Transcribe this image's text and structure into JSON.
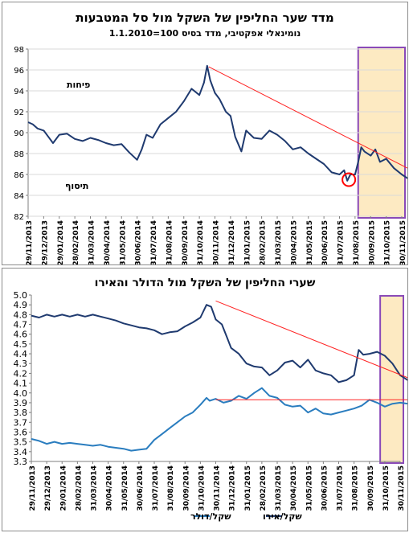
{
  "chart_data": [
    {
      "type": "line",
      "title": "מדד שער החליפין של השקל מול סל המטבעות",
      "subtitle": "נומינאלי אפקטיבי, מדד בסיס 100=1.1.2010",
      "ylim": [
        82,
        98
      ],
      "yticks": [
        82,
        84,
        86,
        88,
        90,
        92,
        94,
        96,
        98
      ],
      "x_ticks": [
        "29/11/2013",
        "29/12/2013",
        "29/01/2014",
        "28/02/2014",
        "31/03/2014",
        "30/04/2014",
        "31/05/2014",
        "30/06/2014",
        "31/07/2014",
        "31/08/2014",
        "30/09/2014",
        "31/10/2014",
        "30/11/2014",
        "31/12/2014",
        "31/01/2015",
        "28/02/2015",
        "31/03/2015",
        "30/04/2015",
        "31/05/2015",
        "30/06/2015",
        "31/07/2015",
        "31/08/2015",
        "30/09/2015",
        "31/10/2015",
        "30/11/2015"
      ],
      "annotations": {
        "upper": "פיחות",
        "lower": "תיסוף"
      },
      "series": [
        {
          "values": [
            [
              0,
              91.0
            ],
            [
              0.3,
              90.8
            ],
            [
              0.6,
              90.4
            ],
            [
              1,
              90.2
            ],
            [
              1.3,
              89.6
            ],
            [
              1.6,
              89.0
            ],
            [
              2,
              89.8
            ],
            [
              2.5,
              89.9
            ],
            [
              3,
              89.4
            ],
            [
              3.5,
              89.2
            ],
            [
              4,
              89.5
            ],
            [
              4.5,
              89.3
            ],
            [
              5,
              89.0
            ],
            [
              5.5,
              88.8
            ],
            [
              6,
              88.9
            ],
            [
              6.5,
              88.1
            ],
            [
              7,
              87.4
            ],
            [
              7.3,
              88.4
            ],
            [
              7.6,
              89.8
            ],
            [
              8,
              89.5
            ],
            [
              8.5,
              90.8
            ],
            [
              9,
              91.4
            ],
            [
              9.5,
              92.0
            ],
            [
              10,
              93.0
            ],
            [
              10.5,
              94.2
            ],
            [
              11,
              93.6
            ],
            [
              11.3,
              94.8
            ],
            [
              11.5,
              96.4
            ],
            [
              11.7,
              95.0
            ],
            [
              12,
              93.8
            ],
            [
              12.3,
              93.2
            ],
            [
              12.7,
              92.0
            ],
            [
              13,
              91.6
            ],
            [
              13.3,
              89.6
            ],
            [
              13.7,
              88.2
            ],
            [
              14,
              90.2
            ],
            [
              14.5,
              89.5
            ],
            [
              15,
              89.4
            ],
            [
              15.5,
              90.2
            ],
            [
              16,
              89.8
            ],
            [
              16.5,
              89.2
            ],
            [
              17,
              88.4
            ],
            [
              17.5,
              88.6
            ],
            [
              18,
              88.0
            ],
            [
              18.5,
              87.5
            ],
            [
              19,
              87.0
            ],
            [
              19.5,
              86.2
            ],
            [
              20,
              86.0
            ],
            [
              20.3,
              86.4
            ],
            [
              20.5,
              85.4
            ],
            [
              20.7,
              86.0
            ],
            [
              21,
              86.0
            ],
            [
              21.2,
              87.2
            ],
            [
              21.4,
              88.6
            ],
            [
              21.6,
              88.2
            ],
            [
              22,
              87.8
            ],
            [
              22.3,
              88.4
            ],
            [
              22.6,
              87.2
            ],
            [
              23,
              87.5
            ],
            [
              23.5,
              86.6
            ],
            [
              24,
              86.0
            ],
            [
              24.5,
              85.5
            ],
            [
              25,
              85.0
            ]
          ]
        }
      ]
    },
    {
      "type": "line",
      "title": "שערי החליפין של השקל מול הדולר והאירו",
      "ylim": [
        3.3,
        5.0
      ],
      "yticks": [
        3.3,
        3.4,
        3.5,
        3.6,
        3.7,
        3.8,
        3.9,
        4.0,
        4.1,
        4.2,
        4.3,
        4.4,
        4.5,
        4.6,
        4.7,
        4.8,
        4.9,
        5.0
      ],
      "x_ticks": [
        "29/11/2013",
        "29/12/2013",
        "29/01/2014",
        "28/02/2014",
        "31/03/2014",
        "30/04/2014",
        "31/05/2014",
        "30/06/2014",
        "31/07/2014",
        "31/08/2014",
        "30/09/2014",
        "31/10/2014",
        "30/11/2014",
        "31/12/2014",
        "31/01/2015",
        "28/02/2015",
        "31/03/2015",
        "30/04/2015",
        "31/05/2015",
        "30/06/2015",
        "31/07/2015",
        "31/08/2015",
        "30/09/2015",
        "31/10/2015",
        "30/11/2015"
      ],
      "legend": [
        "שקל/אירו",
        "שקל/דולר"
      ],
      "series": [
        {
          "name": "שקל/אירו",
          "values": [
            [
              0,
              4.79
            ],
            [
              0.5,
              4.77
            ],
            [
              1,
              4.8
            ],
            [
              1.5,
              4.78
            ],
            [
              2,
              4.8
            ],
            [
              2.5,
              4.78
            ],
            [
              3,
              4.8
            ],
            [
              3.5,
              4.78
            ],
            [
              4,
              4.8
            ],
            [
              4.5,
              4.78
            ],
            [
              5,
              4.76
            ],
            [
              5.5,
              4.74
            ],
            [
              6,
              4.71
            ],
            [
              6.5,
              4.69
            ],
            [
              7,
              4.67
            ],
            [
              7.5,
              4.66
            ],
            [
              8,
              4.64
            ],
            [
              8.5,
              4.6
            ],
            [
              9,
              4.62
            ],
            [
              9.5,
              4.63
            ],
            [
              10,
              4.68
            ],
            [
              10.5,
              4.72
            ],
            [
              11,
              4.77
            ],
            [
              11.4,
              4.9
            ],
            [
              11.7,
              4.88
            ],
            [
              12,
              4.75
            ],
            [
              12.4,
              4.7
            ],
            [
              12.7,
              4.58
            ],
            [
              13,
              4.46
            ],
            [
              13.5,
              4.4
            ],
            [
              14,
              4.3
            ],
            [
              14.5,
              4.27
            ],
            [
              15,
              4.26
            ],
            [
              15.5,
              4.18
            ],
            [
              16,
              4.23
            ],
            [
              16.5,
              4.31
            ],
            [
              17,
              4.33
            ],
            [
              17.5,
              4.26
            ],
            [
              18,
              4.34
            ],
            [
              18.5,
              4.23
            ],
            [
              19,
              4.2
            ],
            [
              19.5,
              4.18
            ],
            [
              20,
              4.11
            ],
            [
              20.5,
              4.13
            ],
            [
              21,
              4.18
            ],
            [
              21.3,
              4.44
            ],
            [
              21.6,
              4.39
            ],
            [
              22,
              4.4
            ],
            [
              22.5,
              4.42
            ],
            [
              23,
              4.38
            ],
            [
              23.5,
              4.3
            ],
            [
              24,
              4.18
            ],
            [
              24.5,
              4.13
            ],
            [
              25,
              4.1
            ]
          ]
        },
        {
          "name": "שקל/דולר",
          "values": [
            [
              0,
              3.53
            ],
            [
              0.5,
              3.51
            ],
            [
              1,
              3.48
            ],
            [
              1.5,
              3.5
            ],
            [
              2,
              3.48
            ],
            [
              2.5,
              3.49
            ],
            [
              3,
              3.48
            ],
            [
              3.5,
              3.47
            ],
            [
              4,
              3.46
            ],
            [
              4.5,
              3.47
            ],
            [
              5,
              3.45
            ],
            [
              5.5,
              3.44
            ],
            [
              6,
              3.43
            ],
            [
              6.5,
              3.41
            ],
            [
              7,
              3.42
            ],
            [
              7.5,
              3.43
            ],
            [
              8,
              3.52
            ],
            [
              8.5,
              3.58
            ],
            [
              9,
              3.64
            ],
            [
              9.5,
              3.7
            ],
            [
              10,
              3.76
            ],
            [
              10.5,
              3.8
            ],
            [
              11,
              3.88
            ],
            [
              11.4,
              3.95
            ],
            [
              11.6,
              3.92
            ],
            [
              12,
              3.94
            ],
            [
              12.5,
              3.9
            ],
            [
              13,
              3.92
            ],
            [
              13.5,
              3.97
            ],
            [
              14,
              3.94
            ],
            [
              14.5,
              4.0
            ],
            [
              15,
              4.05
            ],
            [
              15.5,
              3.97
            ],
            [
              16,
              3.95
            ],
            [
              16.5,
              3.88
            ],
            [
              17,
              3.86
            ],
            [
              17.5,
              3.87
            ],
            [
              18,
              3.8
            ],
            [
              18.5,
              3.84
            ],
            [
              19,
              3.79
            ],
            [
              19.5,
              3.78
            ],
            [
              20,
              3.8
            ],
            [
              20.5,
              3.82
            ],
            [
              21,
              3.84
            ],
            [
              21.5,
              3.87
            ],
            [
              22,
              3.93
            ],
            [
              22.5,
              3.9
            ],
            [
              23,
              3.86
            ],
            [
              23.5,
              3.89
            ],
            [
              24,
              3.9
            ],
            [
              24.5,
              3.89
            ],
            [
              25,
              3.9
            ]
          ]
        }
      ]
    }
  ],
  "colors": {
    "index_line": "#1f3a6f",
    "eur_line": "#1f3a6f",
    "usd_line": "#2a7dbf",
    "trend": "#ff2222",
    "highlight_fill": "#fdeac2",
    "highlight_border": "#8a4ab8",
    "marker_circle": "#ff0000"
  }
}
